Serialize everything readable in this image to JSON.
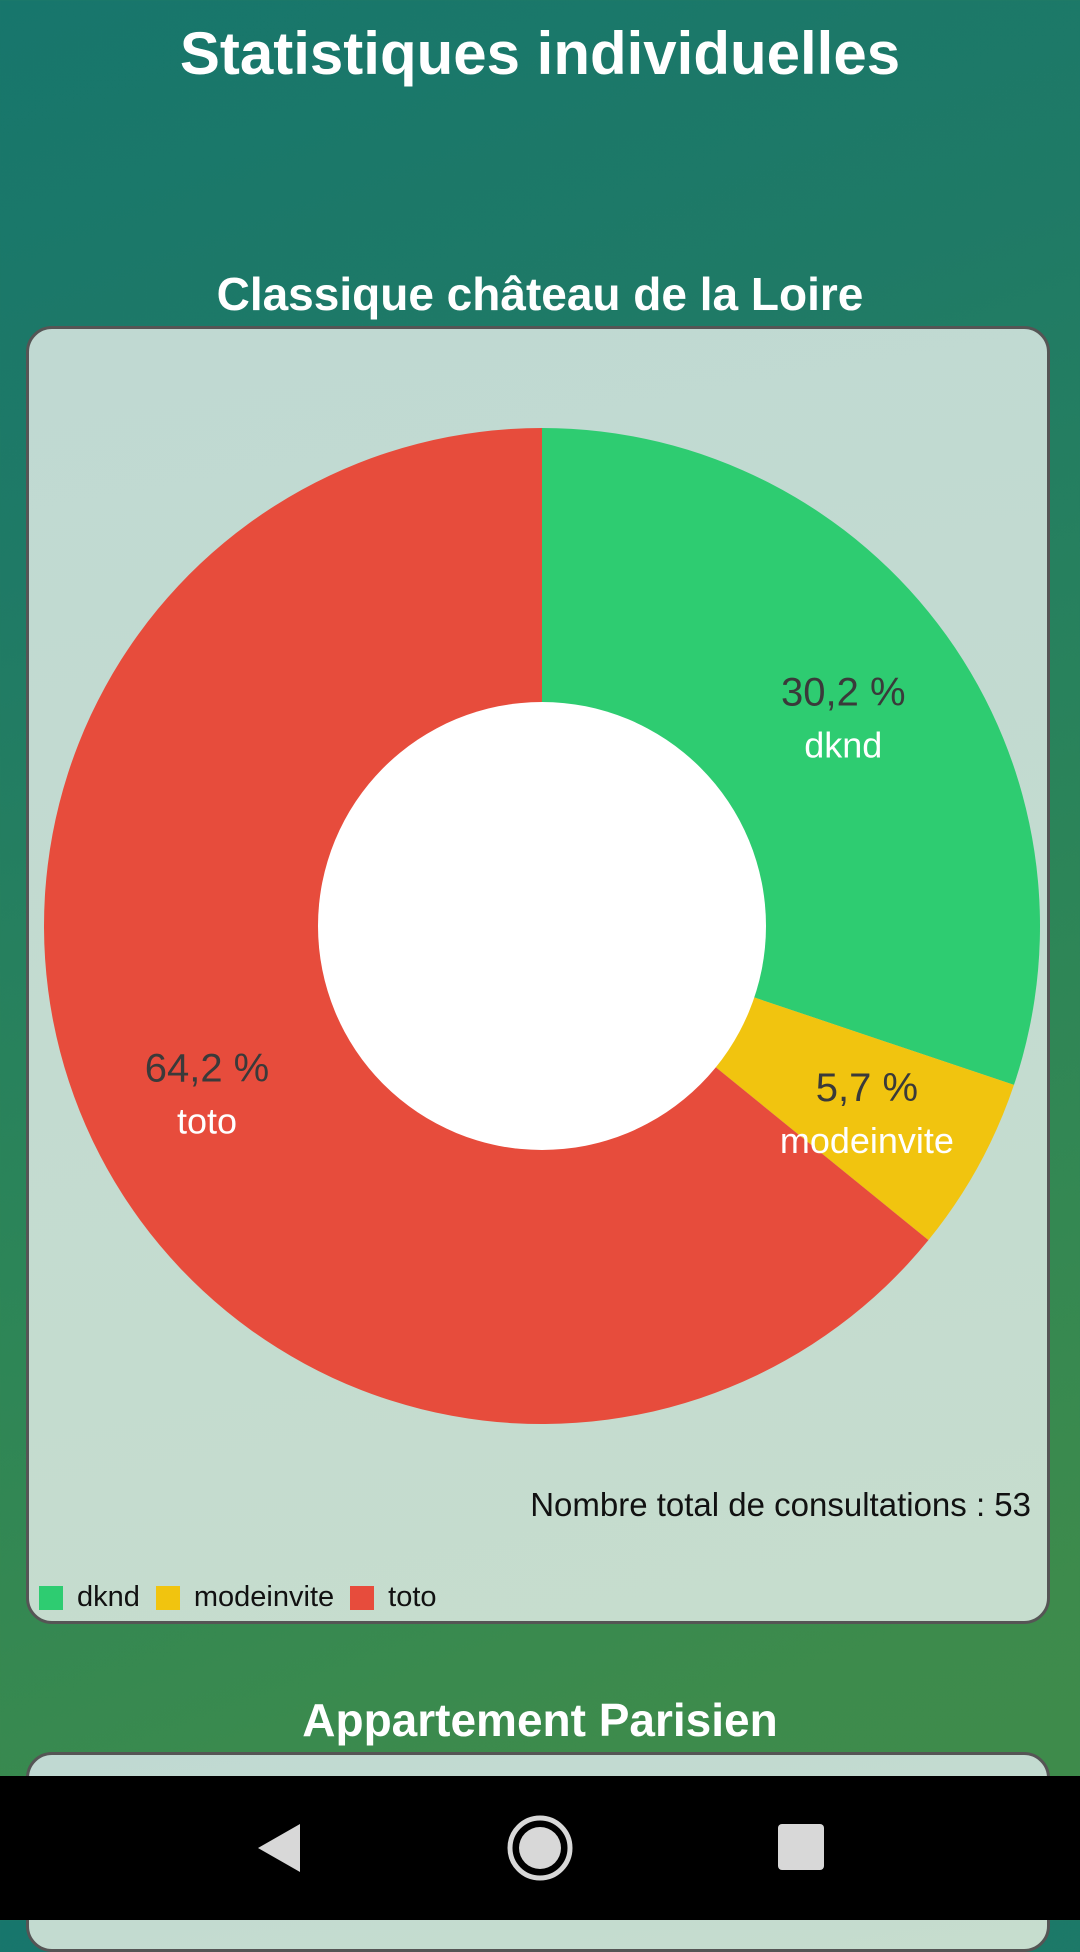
{
  "header": {
    "title": "Statistiques individuelles"
  },
  "sections": [
    {
      "title": "Classique château de la Loire",
      "total_text": "Nombre total de consultations : 53"
    },
    {
      "title": "Appartement Parisien"
    }
  ],
  "chart_data": {
    "type": "pie",
    "donut": true,
    "categories": [
      "dknd",
      "modeinvite",
      "toto"
    ],
    "values": [
      30.2,
      5.7,
      64.2
    ],
    "value_labels": [
      "30,2 %",
      "5,7 %",
      "64,2 %"
    ],
    "colors": [
      "#2ecc71",
      "#f1c40f",
      "#e74c3c"
    ],
    "legend_position": "bottom-left"
  },
  "legend": {
    "items": [
      {
        "label": "dknd",
        "color": "#2ecc71"
      },
      {
        "label": "modeinvite",
        "color": "#f1c40f"
      },
      {
        "label": "toto",
        "color": "#e74c3c"
      }
    ]
  },
  "navbar": {
    "back_icon": "triangle-back-icon",
    "home_icon": "circle-home-icon",
    "recent_icon": "square-recent-icon"
  }
}
